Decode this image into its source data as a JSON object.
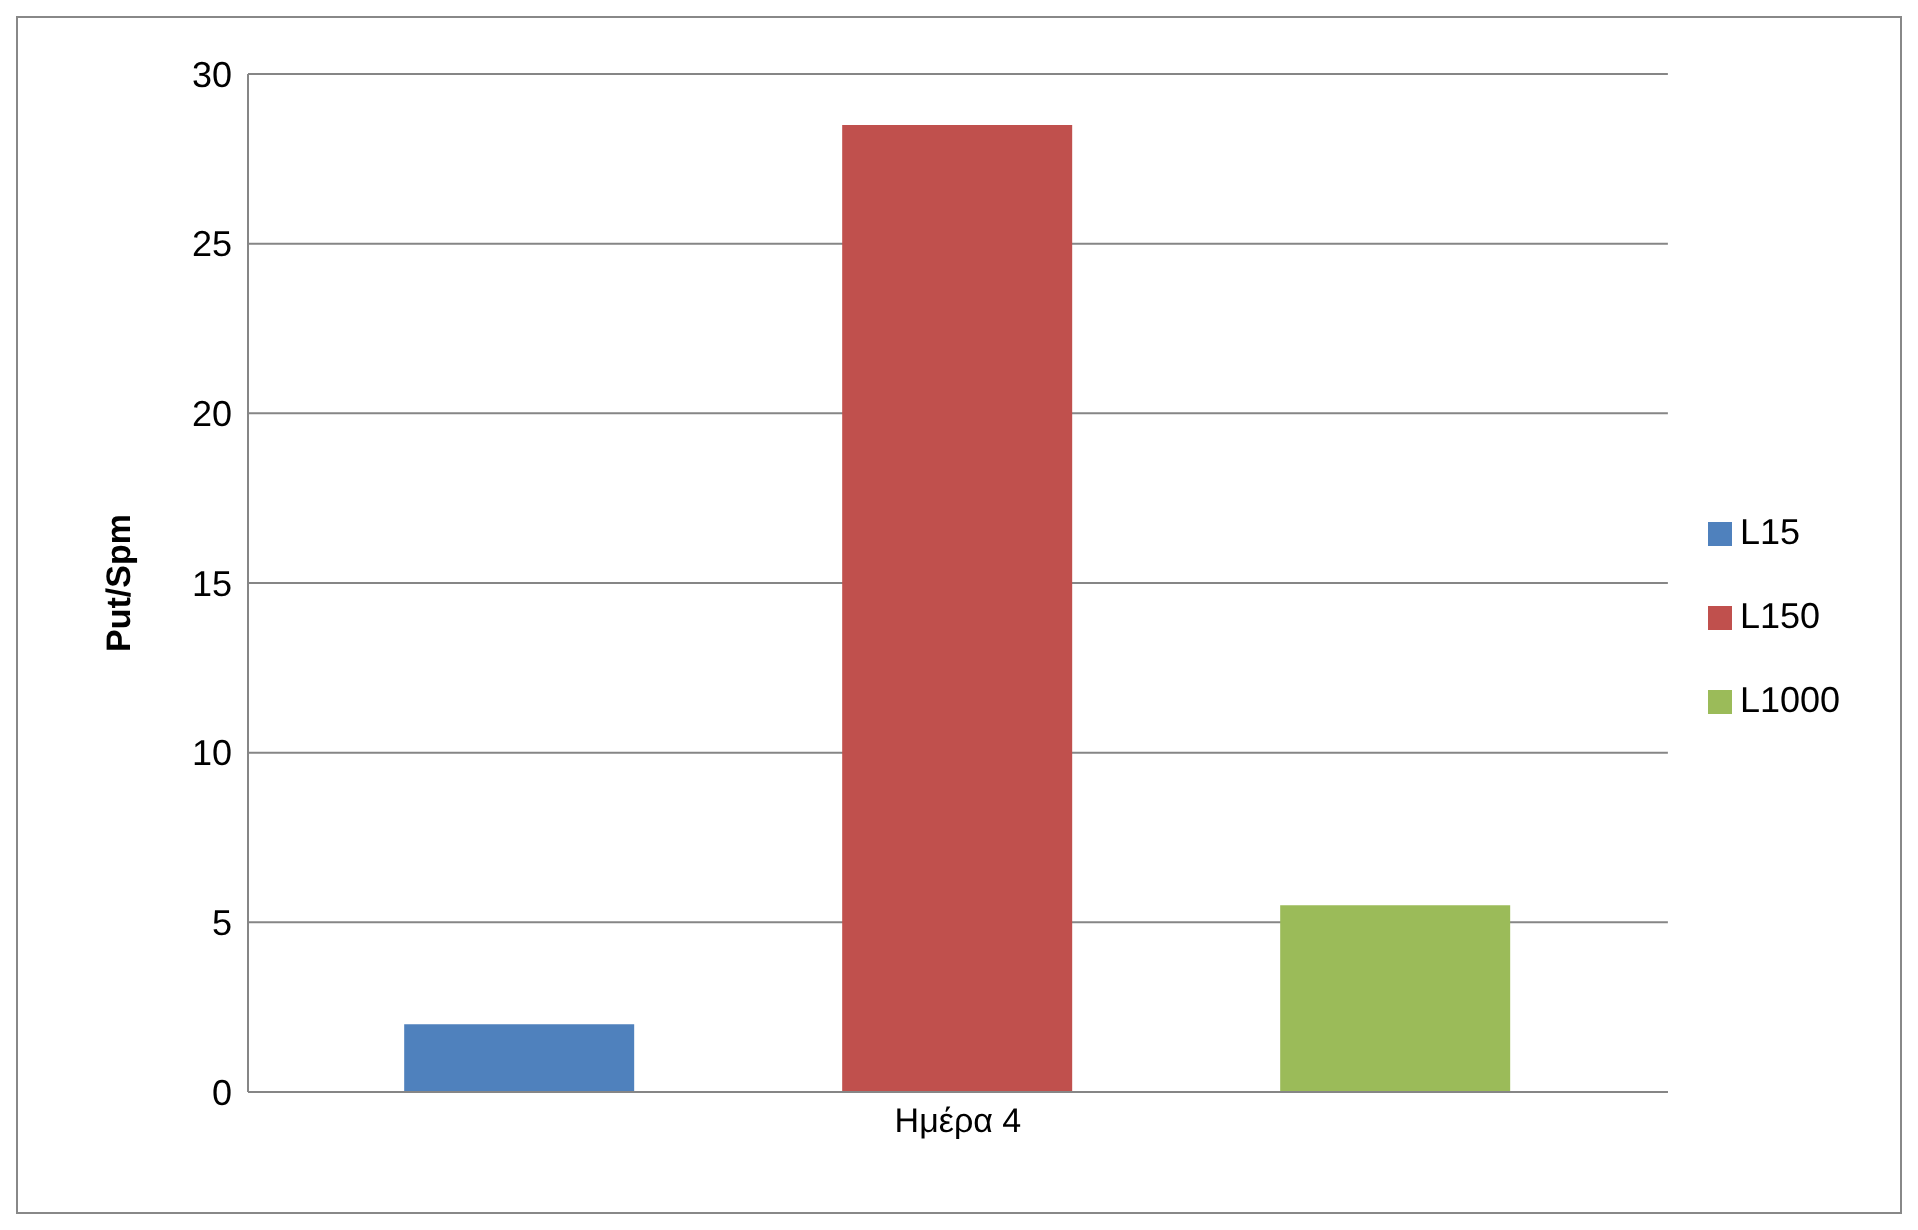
{
  "chart_data": {
    "type": "bar",
    "categories": [
      "Ημέρα 4"
    ],
    "ylabel": "Put/Spm",
    "series": [
      {
        "name": "L15",
        "color": "#4f81bd",
        "values": [
          2
        ]
      },
      {
        "name": "L150",
        "color": "#c0504d",
        "values": [
          28.5
        ]
      },
      {
        "name": "L1000",
        "color": "#9bbb59",
        "values": [
          5.5
        ]
      }
    ],
    "ylim": [
      0,
      30
    ],
    "yticks": [
      0,
      5,
      10,
      15,
      20,
      25,
      30
    ],
    "grid": "y",
    "legend": "right"
  }
}
